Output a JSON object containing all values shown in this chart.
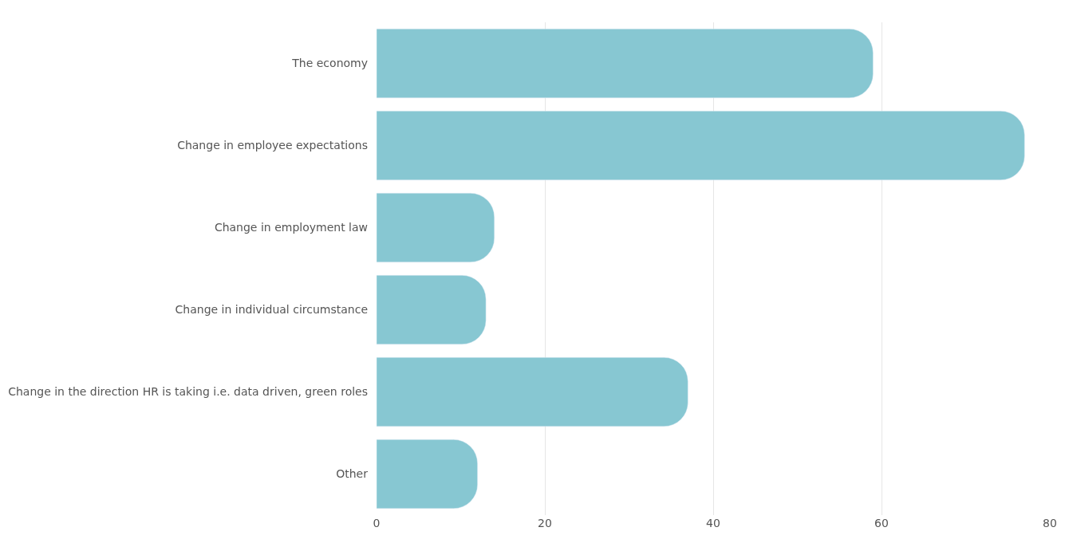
{
  "chart_data": {
    "type": "bar",
    "orientation": "horizontal",
    "categories": [
      "The economy",
      "Change in employee expectations",
      "Change in employment law",
      "Change in individual circumstance",
      "Change in the direction HR is taking i.e. data driven, green roles",
      "Other"
    ],
    "values": [
      59,
      77,
      14,
      13,
      37,
      12
    ],
    "color": "#87c7d2",
    "xlim": [
      0,
      80
    ],
    "xticks": [
      0,
      20,
      40,
      60,
      80
    ],
    "grid": "x"
  }
}
